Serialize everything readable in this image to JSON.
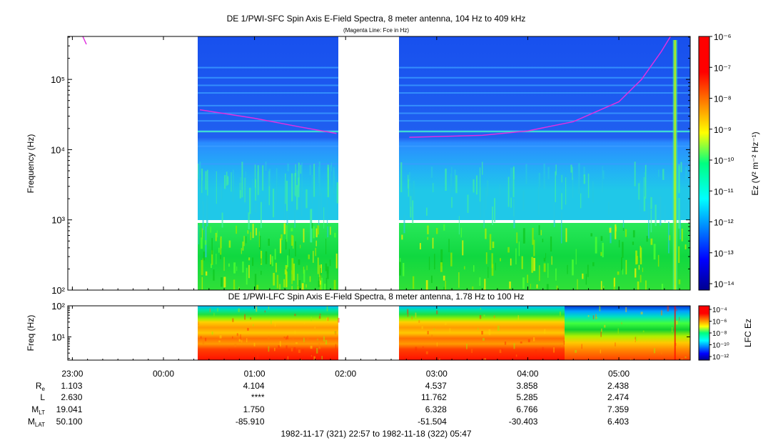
{
  "top_panel": {
    "title": "DE 1/PWI-SFC  Spin Axis E-Field Spectra, 8 meter antenna, 104 Hz to 409 kHz",
    "subtitle": "(Magenta Line: Fce in Hz)",
    "ylabel": "Frequency (Hz)",
    "colorbar_label": "Ez (V² m⁻² Hz⁻¹)"
  },
  "bottom_panel": {
    "title": "DE 1/PWI-LFC  Spin Axis E-Field Spectra, 8 meter antenna, 1.78 Hz to 100 Hz",
    "ylabel": "Freq (Hz)",
    "colorbar_label": "LFC Ez"
  },
  "ephemeris": {
    "labels": [
      "Re",
      "L",
      "MLT",
      "MLAT"
    ],
    "columns": [
      {
        "time": "23:00",
        "values": [
          "1.103",
          "2.630",
          "19.041",
          "50.100"
        ]
      },
      {
        "time": "00:00",
        "values": [
          "",
          "",
          "",
          ""
        ]
      },
      {
        "time": "01:00",
        "values": [
          "4.104",
          "****",
          "1.750",
          "-85.910"
        ]
      },
      {
        "time": "02:00",
        "values": [
          "",
          "",
          "",
          ""
        ]
      },
      {
        "time": "03:00",
        "values": [
          "4.537",
          "11.762",
          "6.328",
          "-51.504"
        ]
      },
      {
        "time": "04:00",
        "values": [
          "3.858",
          "5.285",
          "6.766",
          "-30.403"
        ]
      },
      {
        "time": "05:00",
        "values": [
          "2.438",
          "2.474",
          "7.359",
          "6.403"
        ]
      }
    ]
  },
  "time_range": "1982-11-17 (321) 22:57 to 1982-11-18 (322) 05:47",
  "chart_data": [
    {
      "type": "heatmap",
      "title": "DE 1/PWI-SFC  Spin Axis E-Field Spectra, 8 meter antenna, 104 Hz to 409 kHz",
      "subtitle": "(Magenta Line: Fce in Hz)",
      "ylabel": "Frequency (Hz)",
      "yscale": "log",
      "ylim": [
        100,
        409000
      ],
      "y_ticks": [
        "10²",
        "10³",
        "10⁴",
        "10⁵"
      ],
      "x_ticks": [
        "23:00",
        "00:00",
        "01:00",
        "02:00",
        "03:00",
        "04:00",
        "05:00"
      ],
      "colorbar": {
        "label": "Ez (V² m⁻² Hz⁻¹)",
        "scale": "log",
        "ticks": [
          "10⁻¹⁴",
          "10⁻¹³",
          "10⁻¹²",
          "10⁻¹¹",
          "10⁻¹⁰",
          "10⁻⁹",
          "10⁻⁸",
          "10⁻⁷",
          "10⁻⁶"
        ]
      },
      "data_gaps_utc": [
        [
          "22:57",
          "00:24"
        ],
        "01:54 to 02:37"
      ],
      "fce_line_hz": [
        {
          "time": "00:24",
          "fce": 37000
        },
        {
          "time": "01:00",
          "fce": 28000
        },
        {
          "time": "01:30",
          "fce": 21000
        },
        {
          "time": "01:54",
          "fce": 17000
        },
        {
          "time": "02:42",
          "fce": 15000
        },
        {
          "time": "03:30",
          "fce": 16000
        },
        {
          "time": "04:00",
          "fce": 18500
        },
        {
          "time": "04:30",
          "fce": 25000
        },
        {
          "time": "05:00",
          "fce": 48000
        },
        {
          "time": "05:15",
          "fce": 100000
        },
        {
          "time": "05:28",
          "fce": 250000
        },
        {
          "time": "05:34",
          "fce": 409000
        }
      ]
    },
    {
      "type": "heatmap",
      "title": "DE 1/PWI-LFC  Spin Axis E-Field Spectra, 8 meter antenna, 1.78 Hz to 100 Hz",
      "ylabel": "Freq (Hz)",
      "yscale": "log",
      "ylim": [
        1.78,
        100
      ],
      "y_ticks": [
        "10¹",
        "10²"
      ],
      "colorbar": {
        "label": "LFC Ez",
        "scale": "log",
        "ticks": [
          "10⁻¹²",
          "10⁻¹⁰",
          "10⁻⁸",
          "10⁻⁶",
          "10⁻⁴"
        ]
      }
    }
  ]
}
